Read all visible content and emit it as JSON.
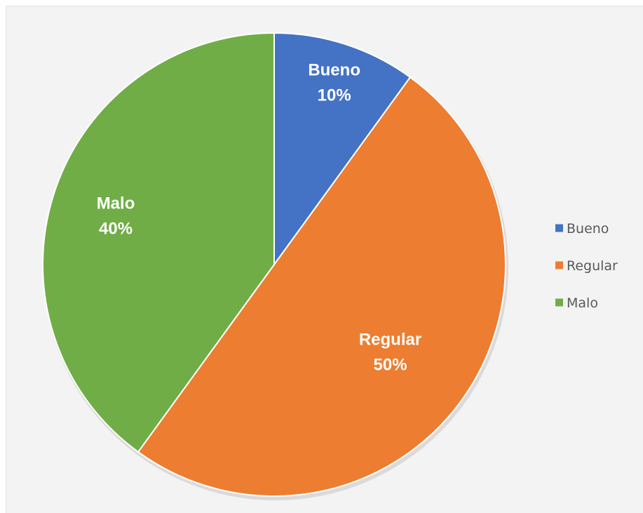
{
  "chart_data": {
    "type": "pie",
    "categories": [
      "Bueno",
      "Regular",
      "Malo"
    ],
    "values": [
      10,
      50,
      40
    ],
    "value_labels": [
      "10%",
      "50%",
      "40%"
    ],
    "colors": [
      "#4472c4",
      "#ed7d31",
      "#70ad47"
    ],
    "legend": {
      "position": "right",
      "entries": [
        "Bueno",
        "Regular",
        "Malo"
      ]
    },
    "start_angle": "12 o'clock",
    "direction": "clockwise"
  }
}
